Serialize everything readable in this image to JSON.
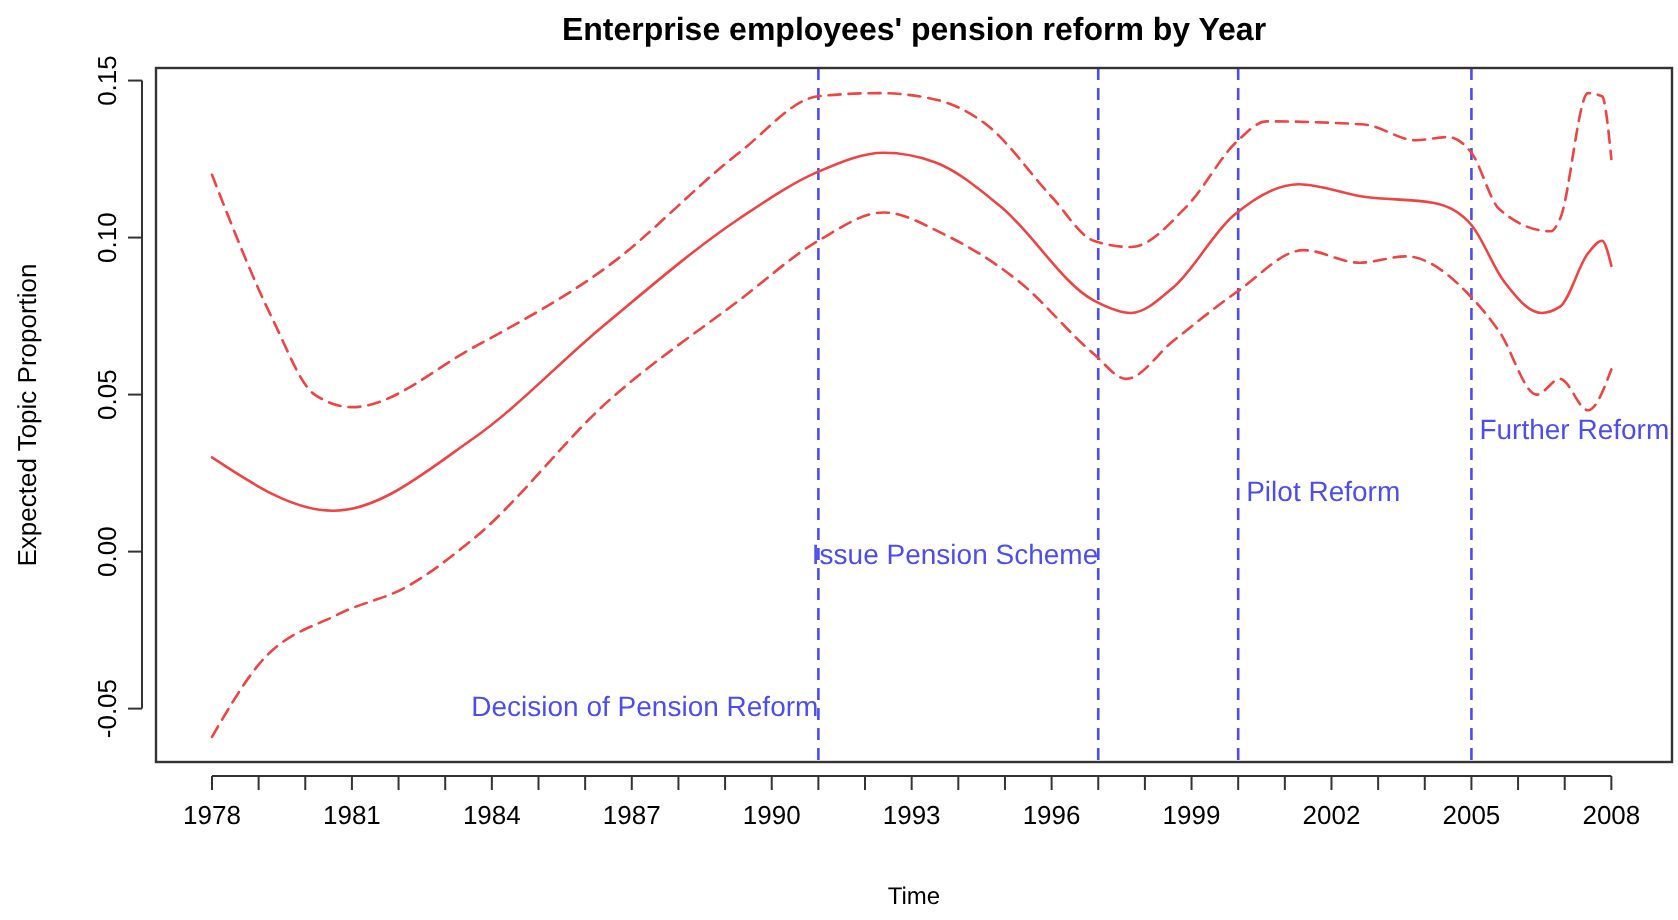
{
  "chart_data": {
    "type": "line",
    "title": "Enterprise employees' pension reform by Year",
    "xlabel": "Time",
    "ylabel": "Expected Topic Proportion",
    "xlim": [
      1976.8,
      2009.3
    ],
    "ylim": [
      -0.067,
      0.154
    ],
    "xticks": [
      1978,
      {
        "value": 1979,
        "label": null
      },
      {
        "value": 1980,
        "label": null
      },
      1981,
      {
        "value": 1982,
        "label": null
      },
      {
        "value": 1983,
        "label": null
      },
      1984,
      {
        "value": 1985,
        "label": null
      },
      {
        "value": 1986,
        "label": null
      },
      1987,
      {
        "value": 1988,
        "label": null
      },
      {
        "value": 1989,
        "label": null
      },
      1990,
      {
        "value": 1991,
        "label": null
      },
      {
        "value": 1992,
        "label": null
      },
      1993,
      {
        "value": 1994,
        "label": null
      },
      {
        "value": 1995,
        "label": null
      },
      1996,
      {
        "value": 1997,
        "label": null
      },
      {
        "value": 1998,
        "label": null
      },
      1999,
      {
        "value": 2000,
        "label": null
      },
      {
        "value": 2001,
        "label": null
      },
      2002,
      {
        "value": 2003,
        "label": null
      },
      {
        "value": 2004,
        "label": null
      },
      2005,
      {
        "value": 2006,
        "label": null
      },
      {
        "value": 2007,
        "label": null
      },
      2008
    ],
    "yticks": [
      {
        "value": -0.05,
        "label": "-0.05"
      },
      {
        "value": 0,
        "label": "0.00"
      },
      0.05,
      {
        "value": 0.1,
        "label": "0.10"
      },
      0.15
    ],
    "grid": false,
    "marker": "none",
    "series": [
      {
        "color": "#ee4444",
        "line_style": "solid",
        "x": [
          1978,
          1980.6,
          1983.6,
          1986.4,
          1989.3,
          1991,
          1992.4,
          1993.5,
          1994.9,
          1996.9,
          1997.7,
          1998.6,
          1999.9,
          2001.3,
          2002.7,
          2004.2,
          2005,
          2005.7,
          2006.5,
          2006.9,
          2007.5,
          2007.8,
          2008
        ],
        "values": [
          0.03,
          0.013,
          0.036,
          0.072,
          0.106,
          0.121,
          0.127,
          0.124,
          0.11,
          0.08,
          0.076,
          0.084,
          0.107,
          0.117,
          0.113,
          0.111,
          0.104,
          0.086,
          0.076,
          0.078,
          0.095,
          0.099,
          0.091
        ]
      },
      {
        "color": "#ee4444",
        "line_style": "dashed",
        "x": [
          1978,
          1979.3,
          1980.2,
          1981,
          1983.6,
          1986.5,
          1989.3,
          1991,
          1992.3,
          1993.5,
          1994.6,
          1996,
          1996.9,
          1997.7,
          1998.9,
          2000,
          2000.6,
          2002.7,
          2003.8,
          2004.5,
          2005,
          2005.6,
          2006.7,
          2006.9,
          2007.5,
          2007.8,
          2008
        ],
        "values": [
          0.12,
          0.074,
          0.05,
          0.046,
          0.065,
          0.091,
          0.127,
          0.145,
          0.146,
          0.144,
          0.136,
          0.113,
          0.099,
          0.097,
          0.11,
          0.131,
          0.137,
          0.136,
          0.131,
          0.132,
          0.127,
          0.109,
          0.102,
          0.106,
          0.146,
          0.145,
          0.125
        ]
      },
      {
        "color": "#ee4444",
        "line_style": "dashed",
        "x": [
          1978,
          1979,
          1980.7,
          1982.2,
          1983.6,
          1986.5,
          1989.3,
          1991,
          1992.4,
          1993.7,
          1995.3,
          1996.9,
          1997.6,
          1998.6,
          2000,
          2001.4,
          2002.6,
          2003.6,
          2005,
          2005.6,
          2006.4,
          2006.9,
          2007.5,
          2008
        ],
        "values": [
          -0.059,
          -0.036,
          -0.02,
          -0.011,
          0.004,
          0.048,
          0.08,
          0.099,
          0.108,
          0.101,
          0.086,
          0.063,
          0.055,
          0.067,
          0.083,
          0.096,
          0.092,
          0.094,
          0.081,
          0.07,
          0.05,
          0.055,
          0.045,
          0.058
        ]
      }
    ],
    "ref_lines": [
      {
        "axis": "x",
        "value": 1991,
        "color": "#4d4dee",
        "line_style": "dashed",
        "label": "Decision of Pension Reform"
      },
      {
        "axis": "x",
        "value": 1997,
        "color": "#4d4dee",
        "line_style": "dashed",
        "label": "Issue Pension Scheme"
      },
      {
        "axis": "x",
        "value": 2000,
        "color": "#4d4dee",
        "line_style": "dashed",
        "label": "Pilot Reform"
      },
      {
        "axis": "x",
        "value": 2005,
        "color": "#4d4dee",
        "line_style": "dashed",
        "label": "Further Reform"
      }
    ]
  }
}
